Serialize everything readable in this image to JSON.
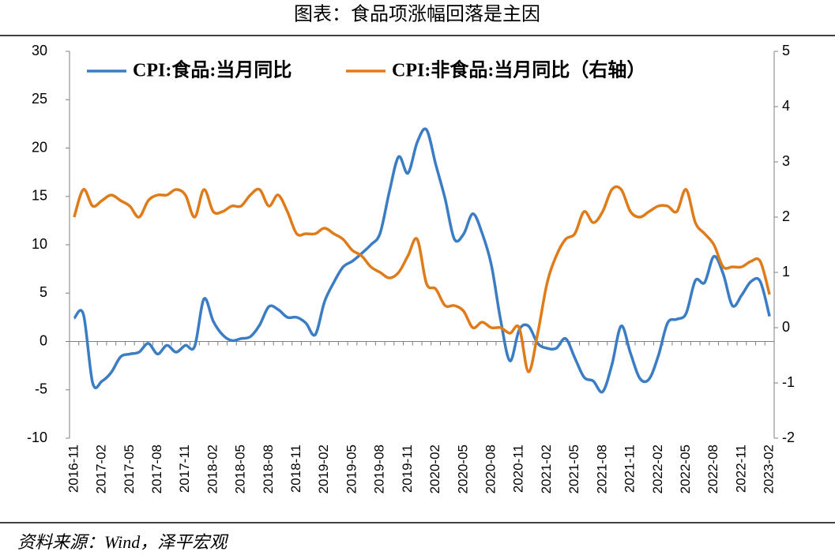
{
  "chart_data": {
    "type": "line",
    "title": "图表：食品项涨幅回落是主因",
    "source": "资料来源：Wind，泽平宏观",
    "categories": [
      "2016-11",
      null,
      null,
      "2017-02",
      null,
      null,
      "2017-05",
      null,
      null,
      "2017-08",
      null,
      null,
      "2017-11",
      null,
      null,
      "2018-02",
      null,
      null,
      "2018-05",
      null,
      null,
      "2018-08",
      null,
      null,
      "2018-11",
      null,
      null,
      "2019-02",
      null,
      null,
      "2019-05",
      null,
      null,
      "2019-08",
      null,
      null,
      "2019-11",
      null,
      null,
      "2020-02",
      null,
      null,
      "2020-05",
      null,
      null,
      "2020-08",
      null,
      null,
      "2020-11",
      null,
      null,
      "2021-02",
      null,
      null,
      "2021-05",
      null,
      null,
      "2021-08",
      null,
      null,
      "2021-11",
      null,
      null,
      "2022-02",
      null,
      null,
      "2022-05",
      null,
      null,
      "2022-08",
      null,
      null,
      "2022-11",
      null,
      null,
      "2023-02"
    ],
    "series": [
      {
        "name": "CPI:食品:当月同比",
        "color": "#3a7dc4",
        "axis": "y",
        "values": [
          2.4,
          2.8,
          -4.3,
          -4.1,
          -3.2,
          -1.6,
          -1.3,
          -1.1,
          -0.2,
          -1.3,
          -0.4,
          -1.1,
          -0.4,
          -0.5,
          4.4,
          2.1,
          0.7,
          0.1,
          0.3,
          0.5,
          1.7,
          3.6,
          3.3,
          2.5,
          2.5,
          1.9,
          0.7,
          4.1,
          6.1,
          7.7,
          8.3,
          9.1,
          10.0,
          11.2,
          15.5,
          19.1,
          17.4,
          20.6,
          21.9,
          18.3,
          14.8,
          10.6,
          11.1,
          13.2,
          11.2,
          7.9,
          2.2,
          -2.0,
          1.2,
          1.6,
          -0.2,
          -0.7,
          -0.7,
          0.3,
          -1.7,
          -3.7,
          -4.1,
          -5.2,
          -2.4,
          1.6,
          -1.2,
          -3.8,
          -3.9,
          -1.5,
          1.9,
          2.3,
          2.9,
          6.3,
          6.1,
          8.8,
          7.0,
          3.7,
          4.8,
          6.2,
          6.2,
          2.6
        ]
      },
      {
        "name": "CPI:非食品:当月同比（右轴）",
        "color": "#e07b1a",
        "axis": "y2",
        "values": [
          2.0,
          2.5,
          2.2,
          2.3,
          2.4,
          2.3,
          2.2,
          2.0,
          2.3,
          2.4,
          2.4,
          2.5,
          2.4,
          2.0,
          2.5,
          2.1,
          2.1,
          2.2,
          2.2,
          2.4,
          2.5,
          2.2,
          2.4,
          2.1,
          1.7,
          1.7,
          1.7,
          1.8,
          1.7,
          1.6,
          1.4,
          1.3,
          1.1,
          1.0,
          0.9,
          1.0,
          1.3,
          1.6,
          0.8,
          0.7,
          0.4,
          0.4,
          0.3,
          0.0,
          0.1,
          0.0,
          0.0,
          -0.1,
          0.0,
          -0.8,
          -0.1,
          0.8,
          1.3,
          1.6,
          1.7,
          2.1,
          1.9,
          2.1,
          2.5,
          2.5,
          2.1,
          2.0,
          2.1,
          2.2,
          2.2,
          2.1,
          2.5,
          1.9,
          1.7,
          1.5,
          1.1,
          1.1,
          1.1,
          1.2,
          1.2,
          0.6
        ]
      }
    ],
    "ylim": [
      -10,
      30
    ],
    "yticks": [
      -10,
      -5,
      0,
      5,
      10,
      15,
      20,
      25,
      30
    ],
    "y2lim": [
      -2,
      5
    ],
    "y2ticks": [
      -2,
      -1,
      0,
      1,
      2,
      3,
      4,
      5
    ],
    "legend": "top"
  }
}
